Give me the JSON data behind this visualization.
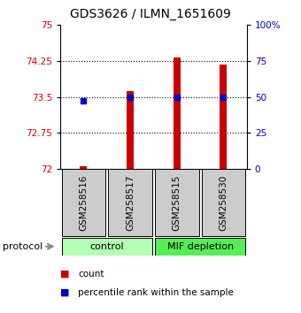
{
  "title": "GDS3626 / ILMN_1651609",
  "samples": [
    "GSM258516",
    "GSM258517",
    "GSM258515",
    "GSM258530"
  ],
  "bar_values": [
    72.06,
    73.62,
    74.32,
    74.18
  ],
  "dot_values": [
    73.42,
    73.5,
    73.5,
    73.5
  ],
  "ymin": 72,
  "ymax": 75,
  "yticks": [
    72,
    72.75,
    73.5,
    74.25,
    75
  ],
  "ytick_labels": [
    "72",
    "72.75",
    "73.5",
    "74.25",
    "75"
  ],
  "y2ticks": [
    0,
    25,
    50,
    75,
    100
  ],
  "y2tick_labels": [
    "0",
    "25",
    "50",
    "75",
    "100%"
  ],
  "bar_color": "#cc0000",
  "dot_color": "#0000cc",
  "left_axis_color": "#cc0000",
  "right_axis_color": "#0000cc",
  "control_color": "#b3ffb3",
  "mif_color": "#55ee55",
  "sample_box_color": "#cccccc",
  "legend_count_label": "count",
  "legend_percentile_label": "percentile rank within the sample",
  "protocol_label": "protocol"
}
